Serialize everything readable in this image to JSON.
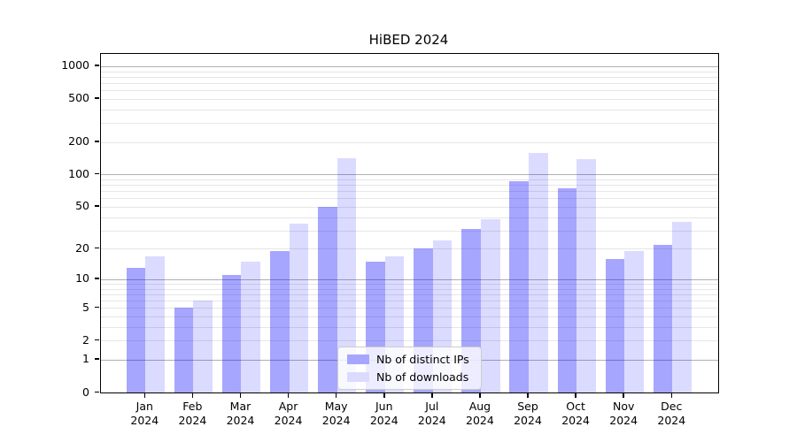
{
  "title": "HiBED 2024",
  "colors": {
    "distinct_ips_hex": "#a6a6ff",
    "downloads_hex": "#dbdbff",
    "distinct_ips_fill": "rgba(0,0,255,0.35)",
    "downloads_fill": "rgba(0,0,255,0.14)",
    "grid_major": "#b0b0b0",
    "axis": "#000000"
  },
  "chart_data": {
    "type": "bar",
    "title": "HiBED 2024",
    "xlabel": "",
    "ylabel": "",
    "yscale": "log1p",
    "grid": "both",
    "legend_position": "lower center",
    "ylim": [
      0,
      1300
    ],
    "yticks": [
      0,
      1,
      2,
      5,
      10,
      20,
      50,
      100,
      200,
      500,
      1000
    ],
    "categories": [
      "Jan 2024",
      "Feb 2024",
      "Mar 2024",
      "Apr 2024",
      "May 2024",
      "Jun 2024",
      "Jul 2024",
      "Aug 2024",
      "Sep 2024",
      "Oct 2024",
      "Nov 2024",
      "Dec 2024"
    ],
    "series": [
      {
        "name": "Nb of distinct IPs",
        "color": "#a6a6ff",
        "fill": "rgba(0,0,255,0.35)",
        "values": [
          13,
          5,
          11,
          19,
          50,
          15,
          20,
          31,
          87,
          75,
          16,
          22
        ]
      },
      {
        "name": "Nb of downloads",
        "color": "#dbdbff",
        "fill": "rgba(0,0,255,0.14)",
        "values": [
          17,
          6,
          15,
          35,
          143,
          17,
          24,
          38,
          160,
          138,
          19,
          36
        ]
      }
    ]
  }
}
